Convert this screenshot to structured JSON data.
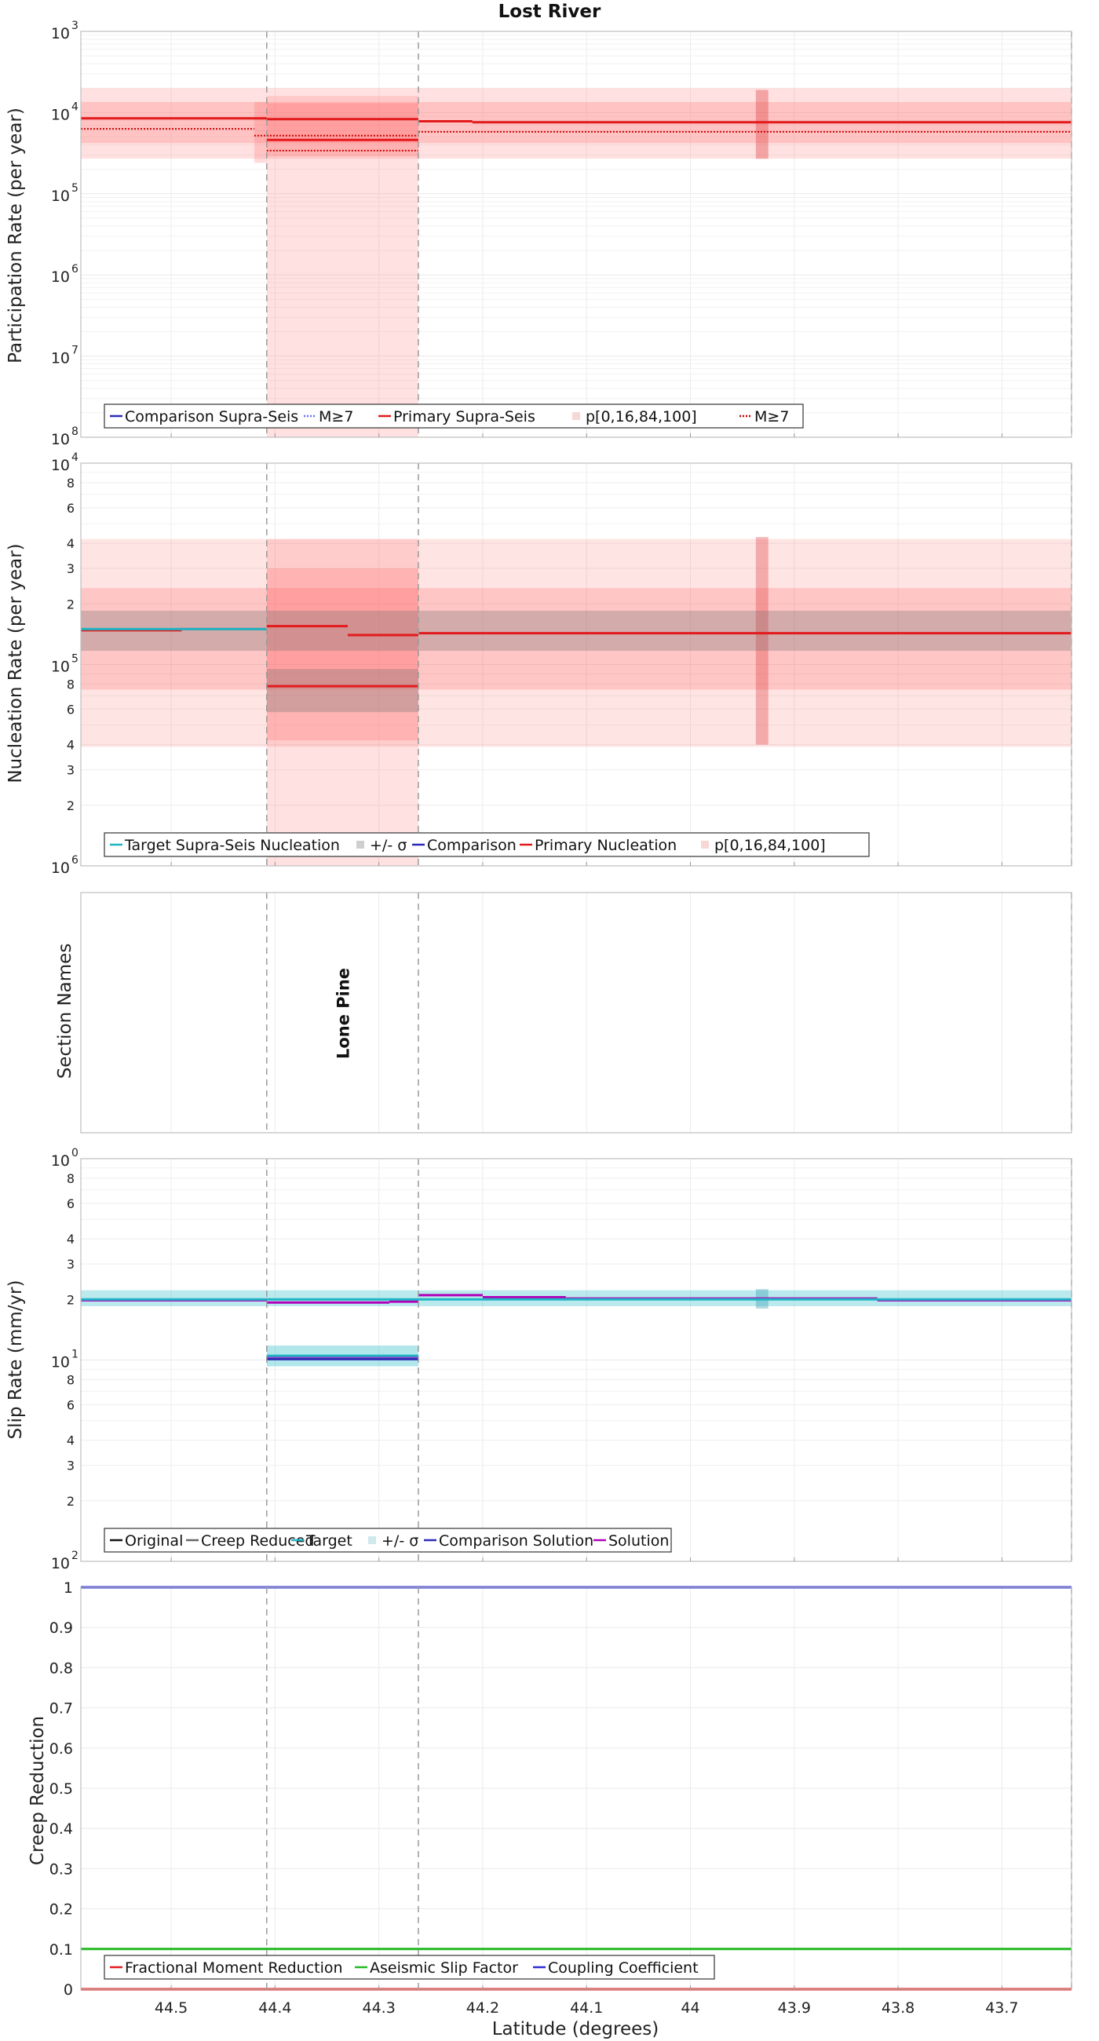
{
  "title": "Lost River",
  "xlabel": "Latitude (degrees)",
  "x_ticks": [
    "44.5",
    "44.4",
    "44.3",
    "44.2",
    "44.1",
    "44",
    "43.9",
    "43.8",
    "43.7"
  ],
  "x_range": [
    44.587,
    43.633
  ],
  "section_boundaries": [
    44.408,
    44.262,
    43.633
  ],
  "chart_data": [
    {
      "type": "line",
      "panel": "participation",
      "ylabel": "Participation Rate (per year)",
      "yscale": "log",
      "ylim": [
        1e-08,
        0.001
      ],
      "y_tick_labels": [
        {
          "value": 0.001,
          "base": "10",
          "exp": "3"
        },
        {
          "value": 0.0001,
          "base": "10",
          "exp": "4"
        },
        {
          "value": 1e-05,
          "base": "10",
          "exp": "5"
        },
        {
          "value": 1e-06,
          "base": "10",
          "exp": "6"
        },
        {
          "value": 1e-07,
          "base": "10",
          "exp": "7"
        },
        {
          "value": 1e-08,
          "base": "10",
          "exp": "8"
        }
      ],
      "legend": [
        "Comparison Supra-Seis",
        "M≥7",
        "Primary Supra-Seis",
        "p[0,16,84,100]",
        "M≥7"
      ],
      "series": [
        {
          "name": "Primary Supra-Seis",
          "color": "#e31a1c",
          "style": "solid",
          "steps": [
            [
              44.587,
              44.408,
              8.5e-05
            ],
            [
              44.408,
              44.262,
              8.3e-05
            ],
            [
              44.262,
              44.21,
              7.8e-05
            ],
            [
              44.21,
              43.633,
              7.6e-05
            ]
          ]
        },
        {
          "name": "M≥7",
          "color": "#cc0000",
          "style": "dotted",
          "steps": [
            [
              44.587,
              44.42,
              6.3e-05
            ],
            [
              44.42,
              44.262,
              5.2e-05
            ],
            [
              44.262,
              43.633,
              5.8e-05
            ]
          ]
        },
        {
          "name": "M≥7 (section)",
          "color": "#cc0000",
          "style": "dotted",
          "steps": [
            [
              44.408,
              44.262,
              3.4e-05
            ]
          ]
        },
        {
          "name": "Primary (section)",
          "color": "#e31a1c",
          "style": "solid",
          "steps": [
            [
              44.408,
              44.262,
              4.6e-05
            ]
          ]
        }
      ],
      "bands": [
        {
          "name": "p[0,100]",
          "x": [
            44.587,
            43.633
          ],
          "y": [
            2.7e-05,
            0.0002
          ]
        },
        {
          "name": "p[0,100] section",
          "x": [
            44.408,
            44.262
          ],
          "y": [
            1e-08,
            0.00016
          ]
        },
        {
          "name": "p[16,84]",
          "x": [
            44.587,
            43.633
          ],
          "y": [
            4.2e-05,
            0.000135
          ]
        },
        {
          "name": "p[16,84] section",
          "x": [
            44.408,
            44.262
          ],
          "y": [
            2.9e-05,
            0.00013
          ]
        },
        {
          "name": "p[16,84] left",
          "x": [
            44.42,
            44.408
          ],
          "y": [
            2.4e-05,
            0.000135
          ]
        },
        {
          "name": "p[16,84] spike",
          "x": [
            43.937,
            43.925
          ],
          "y": [
            2.7e-05,
            0.00019
          ]
        }
      ]
    },
    {
      "type": "line",
      "panel": "nucleation",
      "ylabel": "Nucleation Rate (per year)",
      "yscale": "log",
      "ylim": [
        1e-06,
        0.0001
      ],
      "y_tick_labels": [
        {
          "value": 0.0001,
          "base": "10",
          "exp": "4",
          "major": true
        },
        {
          "value": 8e-05,
          "label": "8"
        },
        {
          "value": 6e-05,
          "label": "6"
        },
        {
          "value": 4e-05,
          "label": "4"
        },
        {
          "value": 3e-05,
          "label": "3"
        },
        {
          "value": 2e-05,
          "label": "2"
        },
        {
          "value": 1e-05,
          "base": "10",
          "exp": "5",
          "major": true
        },
        {
          "value": 8e-06,
          "label": "8"
        },
        {
          "value": 6e-06,
          "label": "6"
        },
        {
          "value": 4e-06,
          "label": "4"
        },
        {
          "value": 3e-06,
          "label": "3"
        },
        {
          "value": 2e-06,
          "label": "2"
        },
        {
          "value": 1e-06,
          "base": "10",
          "exp": "6",
          "major": true
        }
      ],
      "legend": [
        "Target Supra-Seis Nucleation",
        "+/- σ",
        "Comparison",
        "Primary Nucleation",
        "p[0,16,84,100]"
      ],
      "series": [
        {
          "name": "Primary Nucleation",
          "color": "#e31a1c",
          "style": "solid",
          "steps": [
            [
              44.587,
              44.49,
              1.48e-05
            ],
            [
              44.49,
              44.408,
              1.5e-05
            ],
            [
              44.408,
              44.33,
              1.55e-05
            ],
            [
              44.33,
              44.262,
              1.4e-05
            ],
            [
              44.262,
              43.633,
              1.43e-05
            ]
          ]
        },
        {
          "name": "Primary (section)",
          "color": "#e31a1c",
          "style": "solid",
          "steps": [
            [
              44.408,
              44.262,
              7.8e-06
            ]
          ]
        },
        {
          "name": "Target Supra-Seis Nucleation",
          "color": "#1fb5c4",
          "style": "solid",
          "steps": [
            [
              44.587,
              44.49,
              1.5e-05
            ],
            [
              44.49,
              44.408,
              1.5e-05
            ]
          ]
        }
      ],
      "bands": [
        {
          "name": "p[0,100]",
          "x": [
            44.587,
            43.633
          ],
          "y": [
            3.9e-06,
            4.2e-05
          ]
        },
        {
          "name": "p[0,100] section",
          "x": [
            44.408,
            44.262
          ],
          "y": [
            1e-06,
            4.2e-05
          ]
        },
        {
          "name": "p[16,84]",
          "x": [
            44.587,
            43.633
          ],
          "y": [
            7.5e-06,
            2.4e-05
          ]
        },
        {
          "name": "p[16,84] section",
          "x": [
            44.408,
            44.262
          ],
          "y": [
            4.2e-06,
            3e-05
          ]
        },
        {
          "name": "p[16,84] spike",
          "x": [
            43.937,
            43.925
          ],
          "y": [
            4e-06,
            4.3e-05
          ]
        },
        {
          "name": "+/- σ",
          "x": [
            44.587,
            43.633
          ],
          "y": [
            1.17e-05,
            1.85e-05
          ]
        },
        {
          "name": "+/- σ section",
          "x": [
            44.408,
            44.262
          ],
          "y": [
            5.8e-06,
            9.5e-06
          ]
        }
      ]
    },
    {
      "type": "table",
      "panel": "section_names",
      "ylabel": "Section Names",
      "sections": [
        {
          "name": "Lone Pine",
          "x_center": 44.335
        }
      ]
    },
    {
      "type": "line",
      "panel": "slip_rate",
      "ylabel": "Slip Rate (mm/yr)",
      "yscale": "log",
      "ylim": [
        0.01,
        1.0
      ],
      "y_tick_labels": [
        {
          "value": 1,
          "base": "10",
          "exp": "0",
          "major": true
        },
        {
          "value": 0.8,
          "label": "8"
        },
        {
          "value": 0.6,
          "label": "6"
        },
        {
          "value": 0.4,
          "label": "4"
        },
        {
          "value": 0.3,
          "label": "3"
        },
        {
          "value": 0.2,
          "label": "2"
        },
        {
          "value": 0.1,
          "base": "10",
          "exp": "1",
          "major": true
        },
        {
          "value": 0.08,
          "label": "8"
        },
        {
          "value": 0.06,
          "label": "6"
        },
        {
          "value": 0.04,
          "label": "4"
        },
        {
          "value": 0.03,
          "label": "3"
        },
        {
          "value": 0.02,
          "label": "2"
        },
        {
          "value": 0.01,
          "base": "10",
          "exp": "2",
          "major": true
        }
      ],
      "legend": [
        "Original",
        "Creep Reduced",
        "Target",
        "+/- σ",
        "Comparison Solution",
        "Solution"
      ],
      "series": [
        {
          "name": "Solution",
          "color": "#b000b8",
          "style": "solid",
          "steps": [
            [
              44.587,
              44.408,
              0.198
            ],
            [
              44.408,
              44.29,
              0.193
            ],
            [
              44.29,
              44.262,
              0.195
            ],
            [
              44.262,
              44.2,
              0.21
            ],
            [
              44.2,
              44.12,
              0.205
            ],
            [
              44.12,
              43.82,
              0.202
            ],
            [
              43.82,
              43.633,
              0.198
            ]
          ]
        },
        {
          "name": "Solution (section)",
          "color": "#b000b8",
          "style": "solid",
          "steps": [
            [
              44.408,
              44.262,
              0.104
            ]
          ]
        },
        {
          "name": "Comparison Solution",
          "color": "#2b2bb8",
          "style": "solid",
          "steps": [
            [
              44.408,
              44.262,
              0.101
            ]
          ]
        },
        {
          "name": "Target",
          "color": "#1fb5c4",
          "style": "solid",
          "steps": [
            [
              44.587,
              43.633,
              0.2
            ],
            [
              44.408,
              44.262,
              0.105
            ]
          ]
        }
      ],
      "bands": [
        {
          "name": "+/- σ",
          "x": [
            44.587,
            43.633
          ],
          "y": [
            0.185,
            0.222
          ]
        },
        {
          "name": "+/- σ section",
          "x": [
            44.408,
            44.262
          ],
          "y": [
            0.093,
            0.118
          ]
        }
      ]
    },
    {
      "type": "line",
      "panel": "creep",
      "ylabel": "Creep Reduction",
      "ylim": [
        0,
        1
      ],
      "y_tick_labels": [
        "0",
        "0.1",
        "0.2",
        "0.3",
        "0.4",
        "0.5",
        "0.6",
        "0.7",
        "0.8",
        "0.9",
        "1"
      ],
      "legend": [
        "Fractional Moment Reduction",
        "Aseismic Slip Factor",
        "Coupling Coefficient"
      ],
      "series": [
        {
          "name": "Fractional Moment Reduction",
          "color": "#e31a1c",
          "values": [
            0,
            0
          ]
        },
        {
          "name": "Aseismic Slip Factor",
          "color": "#22b822",
          "values": [
            0.1,
            0.1
          ]
        },
        {
          "name": "Coupling Coefficient",
          "color": "#2b2bd8",
          "values": [
            1,
            1
          ]
        }
      ]
    }
  ]
}
